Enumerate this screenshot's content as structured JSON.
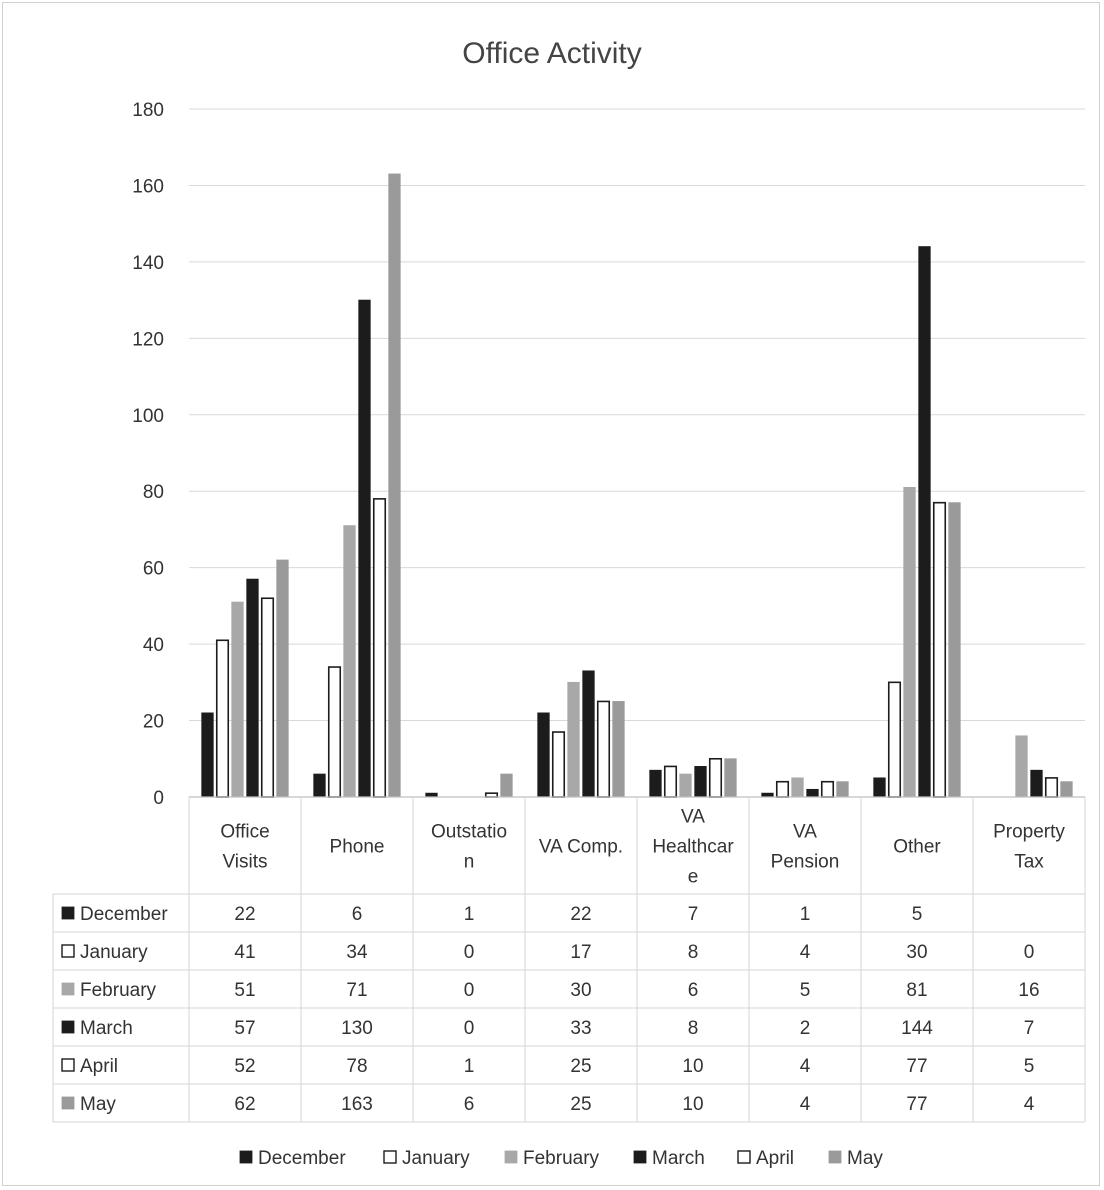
{
  "chart_data": {
    "type": "bar",
    "title": "Office Activity",
    "ylim": [
      0,
      180
    ],
    "ytick_step": 20,
    "grid": true,
    "legend_position": "bottom",
    "categories": [
      [
        "Office",
        "Visits"
      ],
      [
        "Phone"
      ],
      [
        "Outstatio",
        "n"
      ],
      [
        "VA Comp."
      ],
      [
        "VA",
        "Healthcar",
        "e"
      ],
      [
        "VA",
        "Pension"
      ],
      [
        "Other"
      ],
      [
        "Property",
        "Tax"
      ]
    ],
    "series": [
      {
        "name": "December",
        "color": "#1c1c1c",
        "fill": "solid",
        "values": [
          22,
          6,
          1,
          22,
          7,
          1,
          5,
          null
        ]
      },
      {
        "name": "January",
        "color": "#1c1c1c",
        "fill": "hollow",
        "values": [
          41,
          34,
          0,
          17,
          8,
          4,
          30,
          0
        ]
      },
      {
        "name": "February",
        "color": "#a8a8a8",
        "fill": "solid",
        "values": [
          51,
          71,
          0,
          30,
          6,
          5,
          81,
          16
        ]
      },
      {
        "name": "March",
        "color": "#1c1c1c",
        "fill": "solid",
        "values": [
          57,
          130,
          0,
          33,
          8,
          2,
          144,
          7
        ]
      },
      {
        "name": "April",
        "color": "#1c1c1c",
        "fill": "hollow",
        "values": [
          52,
          78,
          1,
          25,
          10,
          4,
          77,
          5
        ]
      },
      {
        "name": "May",
        "color": "#9a9a9a",
        "fill": "solid",
        "values": [
          62,
          163,
          6,
          25,
          10,
          4,
          77,
          4
        ]
      }
    ]
  }
}
